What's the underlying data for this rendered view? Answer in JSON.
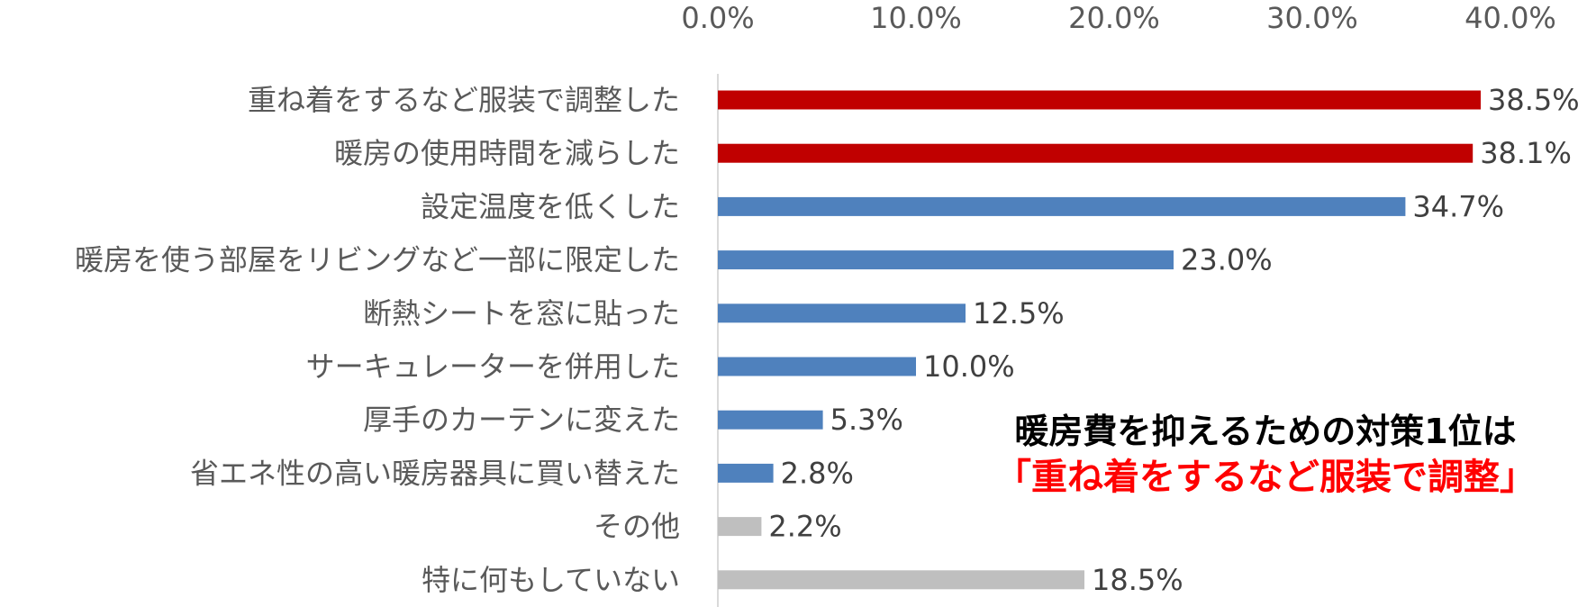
{
  "chart_data": {
    "type": "bar",
    "orientation": "horizontal",
    "x_ticks": [
      "0.0%",
      "10.0%",
      "20.0%",
      "30.0%",
      "40.0%"
    ],
    "xlim": [
      0,
      40
    ],
    "axis_position": "top",
    "grid": false,
    "categories": [
      "重ね着をするなど服装で調整した",
      "暖房の使用時間を減らした",
      "設定温度を低くした",
      "暖房を使う部屋をリビングなど一部に限定した",
      "断熱シートを窓に貼った",
      "サーキュレーターを併用した",
      "厚手のカーテンに変えた",
      "省エネ性の高い暖房器具に買い替えた",
      "その他",
      "特に何もしていない"
    ],
    "values": [
      38.5,
      38.1,
      34.7,
      23.0,
      12.5,
      10.0,
      5.3,
      2.8,
      2.2,
      18.5
    ],
    "value_labels": [
      "38.5%",
      "38.1%",
      "34.7%",
      "23.0%",
      "12.5%",
      "10.0%",
      "5.3%",
      "2.8%",
      "2.2%",
      "18.5%"
    ],
    "colors": [
      "#c00000",
      "#c00000",
      "#4f81bd",
      "#4f81bd",
      "#4f81bd",
      "#4f81bd",
      "#4f81bd",
      "#4f81bd",
      "#bfbfbf",
      "#bfbfbf"
    ],
    "axis_line_color": "#d9d9d9"
  },
  "callout": {
    "line1": "暖房費を抑えるための対策1位は",
    "line2": "「重ね着をするなど服装で調整」"
  }
}
